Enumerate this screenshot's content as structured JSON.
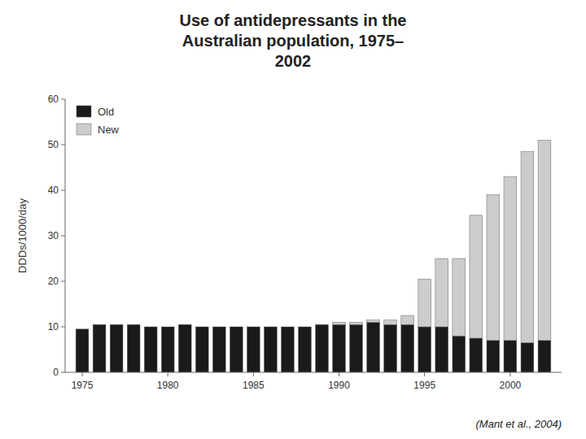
{
  "chart_data": {
    "type": "bar",
    "stacked": true,
    "title": "Use of antidepressants in the\nAustralian population, 1975–\n2002",
    "ylabel": "DDDs/1000/day",
    "annotations": [
      "(Mant et al., 2004)"
    ],
    "x": [
      1975,
      1976,
      1977,
      1978,
      1979,
      1980,
      1981,
      1982,
      1983,
      1984,
      1985,
      1986,
      1987,
      1988,
      1989,
      1990,
      1991,
      1992,
      1993,
      1994,
      1995,
      1996,
      1997,
      1998,
      1999,
      2000,
      2001,
      2002
    ],
    "series": [
      {
        "name": "Old",
        "color": "#1a1a1a",
        "values": [
          9.5,
          10.5,
          10.5,
          10.5,
          10.0,
          10.0,
          10.5,
          10.0,
          10.0,
          10.0,
          10.0,
          10.0,
          10.0,
          10.0,
          10.5,
          10.5,
          10.5,
          11.0,
          10.5,
          10.5,
          10.0,
          10.0,
          8.0,
          7.5,
          7.0,
          7.0,
          6.5,
          7.0
        ]
      },
      {
        "name": "New",
        "color": "#cccccc",
        "values": [
          0.0,
          0.0,
          0.0,
          0.0,
          0.0,
          0.0,
          0.0,
          0.0,
          0.0,
          0.0,
          0.0,
          0.0,
          0.0,
          0.0,
          0.0,
          0.5,
          0.5,
          0.5,
          1.0,
          2.0,
          10.5,
          15.0,
          17.0,
          27.0,
          32.0,
          36.0,
          42.0,
          44.0
        ]
      }
    ],
    "xlim": [
      1974,
      2003
    ],
    "xticks": [
      1975,
      1980,
      1985,
      1990,
      1995,
      2000
    ],
    "ylim": [
      0,
      60
    ],
    "yticks": [
      0,
      10,
      20,
      30,
      40,
      50,
      60
    ],
    "legend": "upper left",
    "grid": false
  }
}
